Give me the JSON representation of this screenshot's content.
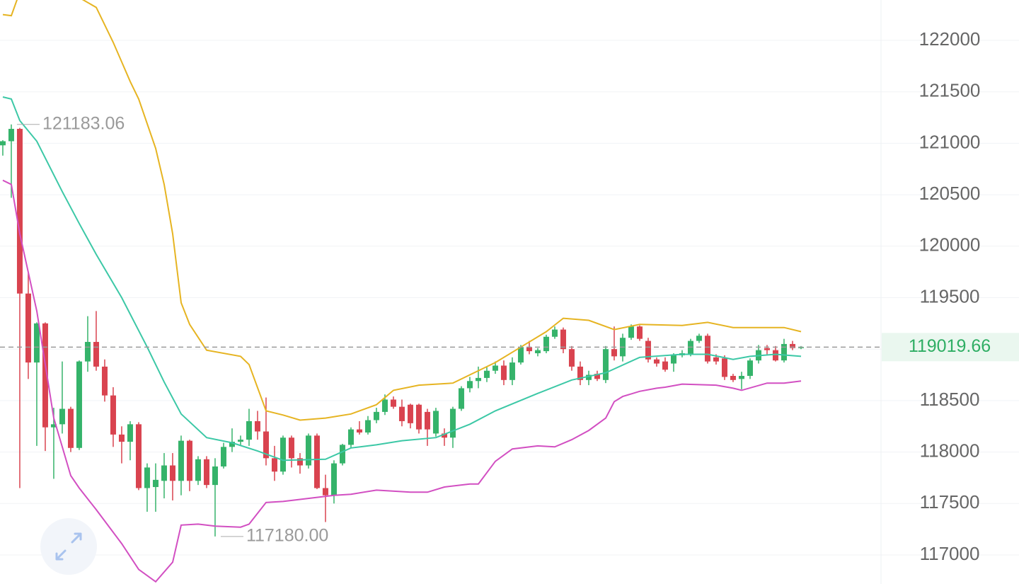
{
  "chart_data": {
    "type": "candlestick",
    "ylim": [
      116718,
      122392
    ],
    "xlim": [
      -0.33,
      103.42
    ],
    "yticks": [
      117000,
      117500,
      118000,
      118500,
      119000,
      119500,
      120000,
      120500,
      121000,
      121500,
      122000
    ],
    "grid": true,
    "up_color": "#35b36a",
    "down_color": "#d9434f",
    "open": [
      120980,
      121020,
      121140,
      119540,
      118870,
      119250,
      118240,
      118270,
      118420,
      118040,
      118880,
      119070,
      118830,
      118550,
      118170,
      118100,
      118270,
      117650,
      117660,
      117720,
      117870,
      117720,
      118110,
      117720,
      117930,
      117680,
      117860,
      118050,
      118100,
      118120,
      118300,
      118200,
      117940,
      117810,
      118140,
      117940,
      117870,
      118160,
      117650,
      117580,
      117890,
      118070,
      118220,
      118190,
      118310,
      118390,
      118510,
      118440,
      118460,
      118460,
      118390,
      118180,
      118180,
      118140,
      118420,
      118620,
      118690,
      118720,
      118790,
      118840,
      118700,
      118870,
      119020,
      118960,
      118980,
      119120,
      119190,
      119000,
      118830,
      118700,
      118760,
      118700,
      119000,
      118930,
      119110,
      119220,
      119080,
      118900,
      118880,
      118860,
      118940,
      118950,
      119080,
      119130,
      118920,
      118910,
      118740,
      118710,
      118740,
      118890,
      119010,
      118990,
      118890,
      119050,
      119010
    ],
    "high": [
      121030,
      121183.06,
      121150,
      119740,
      119260,
      119260,
      118430,
      118880,
      118440,
      118890,
      119320,
      119370,
      118900,
      118630,
      118250,
      118300,
      118290,
      117890,
      117890,
      117990,
      117990,
      118160,
      118120,
      117960,
      117960,
      117940,
      118090,
      118230,
      118160,
      118420,
      118400,
      118530,
      118060,
      118160,
      118160,
      117990,
      118180,
      118180,
      117780,
      117920,
      118080,
      118240,
      118300,
      118350,
      118430,
      118560,
      118540,
      118510,
      118470,
      118470,
      118420,
      118430,
      118230,
      118440,
      118640,
      118730,
      118830,
      118830,
      118880,
      118890,
      118920,
      119040,
      119080,
      119010,
      119140,
      119220,
      119210,
      119030,
      118880,
      118790,
      118790,
      119030,
      119220,
      119150,
      119240,
      119230,
      119110,
      118920,
      118920,
      118960,
      118990,
      119100,
      119150,
      119150,
      118950,
      118940,
      118760,
      118780,
      118910,
      119040,
      119040,
      119030,
      119100,
      119080,
      119030
    ],
    "low": [
      120880,
      120470,
      117650,
      118710,
      118060,
      118010,
      117740,
      118180,
      118000,
      118020,
      118780,
      118790,
      118490,
      118050,
      117890,
      117920,
      117630,
      117420,
      117420,
      117550,
      117530,
      117580,
      117620,
      117680,
      117650,
      117180,
      117840,
      118000,
      118060,
      118060,
      118120,
      117870,
      117720,
      117780,
      117850,
      117790,
      117840,
      117640,
      117320,
      117500,
      117870,
      118040,
      118170,
      118170,
      118280,
      118360,
      118420,
      118250,
      118230,
      118180,
      118060,
      118150,
      118060,
      118040,
      118400,
      118580,
      118620,
      118680,
      118760,
      118650,
      118650,
      118850,
      118950,
      118930,
      118960,
      119100,
      118960,
      118790,
      118650,
      118650,
      118690,
      118670,
      118890,
      118880,
      119090,
      119080,
      118870,
      118830,
      118780,
      118780,
      118920,
      118930,
      119060,
      118860,
      118850,
      118700,
      118680,
      118610,
      118710,
      118860,
      118950,
      118880,
      118870,
      118990,
      119000
    ],
    "close": [
      121020,
      121140,
      119540,
      118870,
      119250,
      118240,
      118270,
      118420,
      118040,
      118880,
      119070,
      118830,
      118550,
      118170,
      118100,
      118270,
      117650,
      117850,
      117730,
      117870,
      117720,
      118110,
      117720,
      117930,
      117680,
      117860,
      118050,
      118100,
      118120,
      118300,
      118200,
      117940,
      117810,
      118140,
      117940,
      117870,
      118160,
      117650,
      117580,
      117890,
      118070,
      118220,
      118190,
      118310,
      118390,
      118510,
      118440,
      118300,
      118280,
      118220,
      118220,
      118400,
      118140,
      118420,
      118620,
      118690,
      118720,
      118790,
      118840,
      118700,
      118870,
      119020,
      118980,
      118990,
      119120,
      119190,
      119000,
      118830,
      118700,
      118750,
      118710,
      119000,
      118930,
      119110,
      119220,
      119100,
      118900,
      118860,
      118800,
      118940,
      118960,
      119080,
      119130,
      118880,
      118880,
      118730,
      118700,
      118740,
      118890,
      118990,
      118990,
      118890,
      119050,
      119010,
      119020
    ],
    "bands": [
      {
        "color": "#e6b422",
        "x": [
          0,
          1,
          3,
          11,
          13,
          14,
          15,
          16,
          18,
          19,
          20,
          21,
          22,
          24,
          28,
          29,
          31,
          33,
          35,
          38,
          41,
          44,
          46,
          49,
          53,
          55,
          58,
          61,
          64,
          66,
          69,
          72,
          75,
          80,
          83,
          86,
          92,
          94
        ],
        "values": [
          122250,
          122240,
          122700,
          122320,
          121980,
          121790,
          121600,
          121430,
          120950,
          120600,
          120120,
          119450,
          119240,
          118990,
          118930,
          118850,
          118400,
          118360,
          118310,
          118330,
          118370,
          118460,
          118600,
          118650,
          118670,
          118750,
          118870,
          119020,
          119170,
          119300,
          119280,
          119190,
          119240,
          119230,
          119260,
          119210,
          119210,
          119170
        ]
      },
      {
        "color": "#3cc8a6",
        "x": [
          0,
          1,
          2,
          4,
          7,
          9,
          11,
          14,
          17,
          19,
          21,
          24,
          27,
          30,
          33,
          38,
          41,
          44,
          47,
          51,
          55,
          58,
          63,
          67,
          71,
          75,
          80,
          83,
          86,
          88,
          91,
          94
        ],
        "values": [
          121450,
          121430,
          121220,
          121020,
          120530,
          120220,
          119920,
          119500,
          119020,
          118680,
          118370,
          118140,
          118090,
          118010,
          117920,
          117930,
          118040,
          118070,
          118110,
          118140,
          118270,
          118400,
          118570,
          118700,
          118770,
          118920,
          118950,
          118950,
          118900,
          118930,
          118950,
          118930
        ]
      },
      {
        "color": "#d24fc2",
        "x": [
          0,
          1,
          2,
          4,
          6,
          8,
          9,
          11,
          14,
          16,
          18,
          20,
          21,
          23,
          25,
          28,
          29,
          31,
          33,
          35,
          37,
          39,
          41,
          44,
          48,
          50,
          52,
          55,
          56,
          58,
          60,
          63,
          65,
          67,
          69,
          71,
          72,
          73,
          75,
          77,
          78,
          80,
          84,
          86,
          87,
          90,
          92,
          94
        ],
        "values": [
          120640,
          120600,
          120120,
          119370,
          118330,
          117770,
          117650,
          117440,
          117110,
          116860,
          116740,
          116930,
          117290,
          117300,
          117280,
          117270,
          117300,
          117510,
          117520,
          117540,
          117560,
          117580,
          117590,
          117630,
          117610,
          117610,
          117660,
          117690,
          117690,
          117910,
          118030,
          118060,
          118050,
          118120,
          118210,
          118330,
          118490,
          118540,
          118590,
          118620,
          118630,
          118660,
          118650,
          118620,
          118600,
          118670,
          118670,
          118690
        ]
      }
    ],
    "last_price": 119019.66,
    "high_label": {
      "value": 121183.06,
      "label": "121183.06"
    },
    "low_label": {
      "value": 117180,
      "label": "117180.00"
    }
  }
}
